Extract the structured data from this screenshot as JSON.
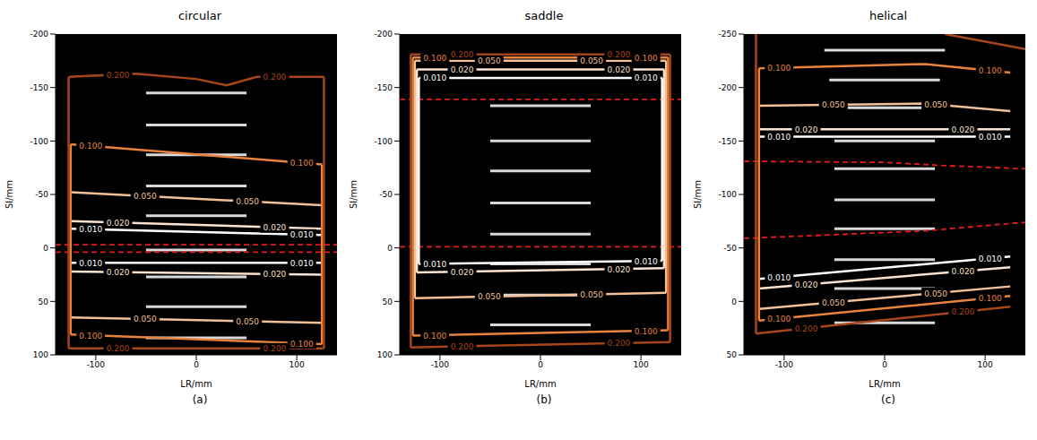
{
  "chart_data": [
    {
      "type": "line",
      "title": "circular",
      "panel_label": "(a)",
      "x_label": "LR/mm",
      "y_label": "SI/mm",
      "xlim": [
        -140,
        140
      ],
      "xticks": [
        -100,
        0,
        100
      ],
      "ylim": [
        100,
        -200
      ],
      "yticks": [
        -200,
        -150,
        -100,
        -50,
        0,
        50,
        100
      ],
      "contours": [
        {
          "level": {
            "value": 0.01,
            "label": "0.010"
          },
          "color": "#ffffff",
          "lines": [
            [
              [
                -125,
                -18
              ],
              [
                125,
                -12
              ]
            ],
            [
              [
                -125,
                14
              ],
              [
                125,
                14
              ]
            ]
          ]
        },
        {
          "level": {
            "value": 0.02,
            "label": "0.020"
          },
          "color": "#fbe3cf",
          "lines": [
            [
              [
                -125,
                -25
              ],
              [
                125,
                -18
              ]
            ],
            [
              [
                -125,
                22
              ],
              [
                125,
                25
              ]
            ]
          ]
        },
        {
          "level": {
            "value": 0.05,
            "label": "0.050"
          },
          "color": "#f4c097",
          "lines": [
            [
              [
                -125,
                -52
              ],
              [
                125,
                -40
              ]
            ],
            [
              [
                -125,
                65
              ],
              [
                125,
                70
              ]
            ]
          ]
        },
        {
          "level": {
            "value": 0.1,
            "label": "0.100"
          },
          "color": "#e8833e",
          "lines": [
            [
              [
                -125,
                -97
              ],
              [
                125,
                -78
              ]
            ],
            [
              [
                -125,
                81
              ],
              [
                125,
                90
              ]
            ],
            [
              [
                -125,
                -97
              ],
              [
                -125,
                81
              ]
            ],
            [
              [
                125,
                -78
              ],
              [
                125,
                90
              ]
            ]
          ]
        },
        {
          "level": {
            "value": 0.2,
            "label": "0.200"
          },
          "color": "#a8451a",
          "lines": [
            [
              [
                -127,
                -160
              ],
              [
                -60,
                -163
              ],
              [
                0,
                -158
              ],
              [
                30,
                -152
              ],
              [
                60,
                -160
              ],
              [
                127,
                -160
              ]
            ],
            [
              [
                -127,
                94
              ],
              [
                127,
                94
              ]
            ],
            [
              [
                -127,
                -160
              ],
              [
                -127,
                94
              ]
            ],
            [
              [
                127,
                -160
              ],
              [
                127,
                94
              ]
            ]
          ]
        }
      ],
      "dashed_lines": {
        "color": "#e41a1c",
        "lines": [
          [
            [
              -140,
              -3
            ],
            [
              140,
              -3
            ]
          ],
          [
            [
              -140,
              4
            ],
            [
              140,
              4
            ]
          ]
        ]
      },
      "structures": {
        "color": "#ffffff",
        "lines": [
          [
            [
              -50,
              -145
            ],
            [
              50,
              -145
            ]
          ],
          [
            [
              -50,
              -115
            ],
            [
              50,
              -115
            ]
          ],
          [
            [
              -50,
              -87
            ],
            [
              50,
              -87
            ]
          ],
          [
            [
              -50,
              -58
            ],
            [
              50,
              -58
            ]
          ],
          [
            [
              -50,
              -30
            ],
            [
              50,
              -30
            ]
          ],
          [
            [
              -50,
              2
            ],
            [
              50,
              2
            ]
          ],
          [
            [
              -50,
              27
            ],
            [
              50,
              27
            ]
          ],
          [
            [
              -50,
              55
            ],
            [
              50,
              55
            ]
          ],
          [
            [
              -50,
              84
            ],
            [
              50,
              84
            ]
          ]
        ]
      }
    },
    {
      "type": "line",
      "title": "saddle",
      "panel_label": "(b)",
      "x_label": "LR/mm",
      "y_label": "SI/mm",
      "xlim": [
        -140,
        140
      ],
      "xticks": [
        -100,
        0,
        100
      ],
      "ylim": [
        100,
        -200
      ],
      "yticks": [
        -200,
        -150,
        -100,
        -50,
        0,
        50,
        100
      ],
      "contours": [
        {
          "level": {
            "value": 0.01,
            "label": "0.010"
          },
          "color": "#ffffff",
          "lines": [
            [
              [
                -121,
                -159
              ],
              [
                121,
                -159
              ]
            ],
            [
              [
                -121,
                15
              ],
              [
                121,
                12
              ]
            ],
            [
              [
                -121,
                -159
              ],
              [
                -121,
                15
              ]
            ],
            [
              [
                121,
                -159
              ],
              [
                121,
                12
              ]
            ]
          ]
        },
        {
          "level": {
            "value": 0.02,
            "label": "0.020"
          },
          "color": "#fbe3cf",
          "lines": [
            [
              [
                -123,
                -167
              ],
              [
                123,
                -167
              ]
            ],
            [
              [
                -123,
                23
              ],
              [
                123,
                19
              ]
            ],
            [
              [
                -123,
                -167
              ],
              [
                -123,
                23
              ]
            ],
            [
              [
                123,
                -167
              ],
              [
                123,
                19
              ]
            ]
          ]
        },
        {
          "level": {
            "value": 0.05,
            "label": "0.050"
          },
          "color": "#f4c097",
          "lines": [
            [
              [
                -125,
                -175
              ],
              [
                125,
                -175
              ]
            ],
            [
              [
                -125,
                47
              ],
              [
                125,
                42
              ]
            ],
            [
              [
                -125,
                -175
              ],
              [
                -125,
                47
              ]
            ],
            [
              [
                125,
                -175
              ],
              [
                125,
                42
              ]
            ]
          ]
        },
        {
          "level": {
            "value": 0.1,
            "label": "0.100"
          },
          "color": "#e8833e",
          "lines": [
            [
              [
                -127,
                -178
              ],
              [
                127,
                -178
              ]
            ],
            [
              [
                -127,
                82
              ],
              [
                127,
                77
              ]
            ],
            [
              [
                -127,
                -178
              ],
              [
                -127,
                82
              ]
            ],
            [
              [
                127,
                -178
              ],
              [
                127,
                77
              ]
            ]
          ]
        },
        {
          "level": {
            "value": 0.2,
            "label": "0.200"
          },
          "color": "#a8451a",
          "lines": [
            [
              [
                -129,
                -181
              ],
              [
                129,
                -181
              ]
            ],
            [
              [
                -129,
                93
              ],
              [
                129,
                88
              ]
            ],
            [
              [
                -129,
                -181
              ],
              [
                -129,
                93
              ]
            ],
            [
              [
                129,
                -181
              ],
              [
                129,
                88
              ]
            ]
          ]
        }
      ],
      "dashed_lines": {
        "color": "#e41a1c",
        "lines": [
          [
            [
              -140,
              -139
            ],
            [
              140,
              -139
            ]
          ],
          [
            [
              -140,
              -1
            ],
            [
              140,
              -1
            ]
          ]
        ]
      },
      "structures": {
        "color": "#ffffff",
        "lines": [
          [
            [
              -50,
              -133
            ],
            [
              50,
              -133
            ]
          ],
          [
            [
              -50,
              -100
            ],
            [
              50,
              -100
            ]
          ],
          [
            [
              -50,
              -72
            ],
            [
              50,
              -72
            ]
          ],
          [
            [
              -50,
              -42
            ],
            [
              50,
              -42
            ]
          ],
          [
            [
              -50,
              -13
            ],
            [
              50,
              -13
            ]
          ],
          [
            [
              -50,
              15
            ],
            [
              50,
              15
            ]
          ],
          [
            [
              -50,
              44
            ],
            [
              50,
              44
            ]
          ],
          [
            [
              -50,
              72
            ],
            [
              50,
              72
            ]
          ]
        ]
      }
    },
    {
      "type": "line",
      "title": "helical",
      "panel_label": "(c)",
      "x_label": "LR/mm",
      "y_label": "SI/mm",
      "xlim": [
        -140,
        140
      ],
      "xticks": [
        -100,
        0,
        100
      ],
      "ylim": [
        50,
        -250
      ],
      "yticks": [
        -250,
        -200,
        -150,
        -100,
        -50,
        0,
        50
      ],
      "contours": [
        {
          "level": {
            "value": 0.01,
            "label": "0.010"
          },
          "color": "#ffffff",
          "lines": [
            [
              [
                -125,
                -154
              ],
              [
                125,
                -154
              ]
            ],
            [
              [
                -125,
                -21
              ],
              [
                125,
                -42
              ]
            ]
          ]
        },
        {
          "level": {
            "value": 0.02,
            "label": "0.020"
          },
          "color": "#fbe3cf",
          "lines": [
            [
              [
                -125,
                -161
              ],
              [
                125,
                -161
              ]
            ],
            [
              [
                -125,
                -12
              ],
              [
                125,
                -32
              ]
            ]
          ]
        },
        {
          "level": {
            "value": 0.05,
            "label": "0.050"
          },
          "color": "#f4c097",
          "lines": [
            [
              [
                -125,
                -183
              ],
              [
                40,
                -185
              ],
              [
                125,
                -178
              ]
            ],
            [
              [
                -125,
                7
              ],
              [
                125,
                -14
              ]
            ]
          ]
        },
        {
          "level": {
            "value": 0.1,
            "label": "0.100"
          },
          "color": "#e8833e",
          "lines": [
            [
              [
                -125,
                -218
              ],
              [
                40,
                -222
              ],
              [
                125,
                -214
              ]
            ],
            [
              [
                -125,
                18
              ],
              [
                125,
                -5
              ]
            ],
            [
              [
                -125,
                -218
              ],
              [
                -125,
                18
              ]
            ]
          ]
        },
        {
          "level": {
            "value": 0.2,
            "label": "0.200"
          },
          "color": "#a8451a",
          "lines": [
            [
              [
                -128,
                -250
              ],
              [
                -128,
                30
              ]
            ],
            [
              [
                -128,
                30
              ],
              [
                125,
                5
              ]
            ],
            [
              [
                60,
                -250
              ],
              [
                140,
                -236
              ]
            ]
          ]
        }
      ],
      "dashed_lines": {
        "color": "#e41a1c",
        "lines": [
          [
            [
              -140,
              -131
            ],
            [
              0,
              -130
            ],
            [
              60,
              -127
            ],
            [
              140,
              -124
            ]
          ],
          [
            [
              -140,
              -59
            ],
            [
              -60,
              -62
            ],
            [
              40,
              -66
            ],
            [
              140,
              -74
            ]
          ]
        ]
      },
      "structures": {
        "color": "#ffffff",
        "lines": [
          [
            [
              -60,
              -235
            ],
            [
              60,
              -235
            ]
          ],
          [
            [
              -55,
              -207
            ],
            [
              55,
              -207
            ]
          ],
          [
            [
              -50,
              -181
            ],
            [
              50,
              -181
            ]
          ],
          [
            [
              -50,
              -150
            ],
            [
              50,
              -150
            ]
          ],
          [
            [
              -50,
              -124
            ],
            [
              50,
              -124
            ]
          ],
          [
            [
              -50,
              -95
            ],
            [
              50,
              -95
            ]
          ],
          [
            [
              -50,
              -68
            ],
            [
              50,
              -68
            ]
          ],
          [
            [
              -50,
              -39
            ],
            [
              50,
              -39
            ]
          ],
          [
            [
              -50,
              -12
            ],
            [
              50,
              -12
            ]
          ],
          [
            [
              -50,
              20
            ],
            [
              50,
              20
            ]
          ]
        ]
      }
    }
  ]
}
